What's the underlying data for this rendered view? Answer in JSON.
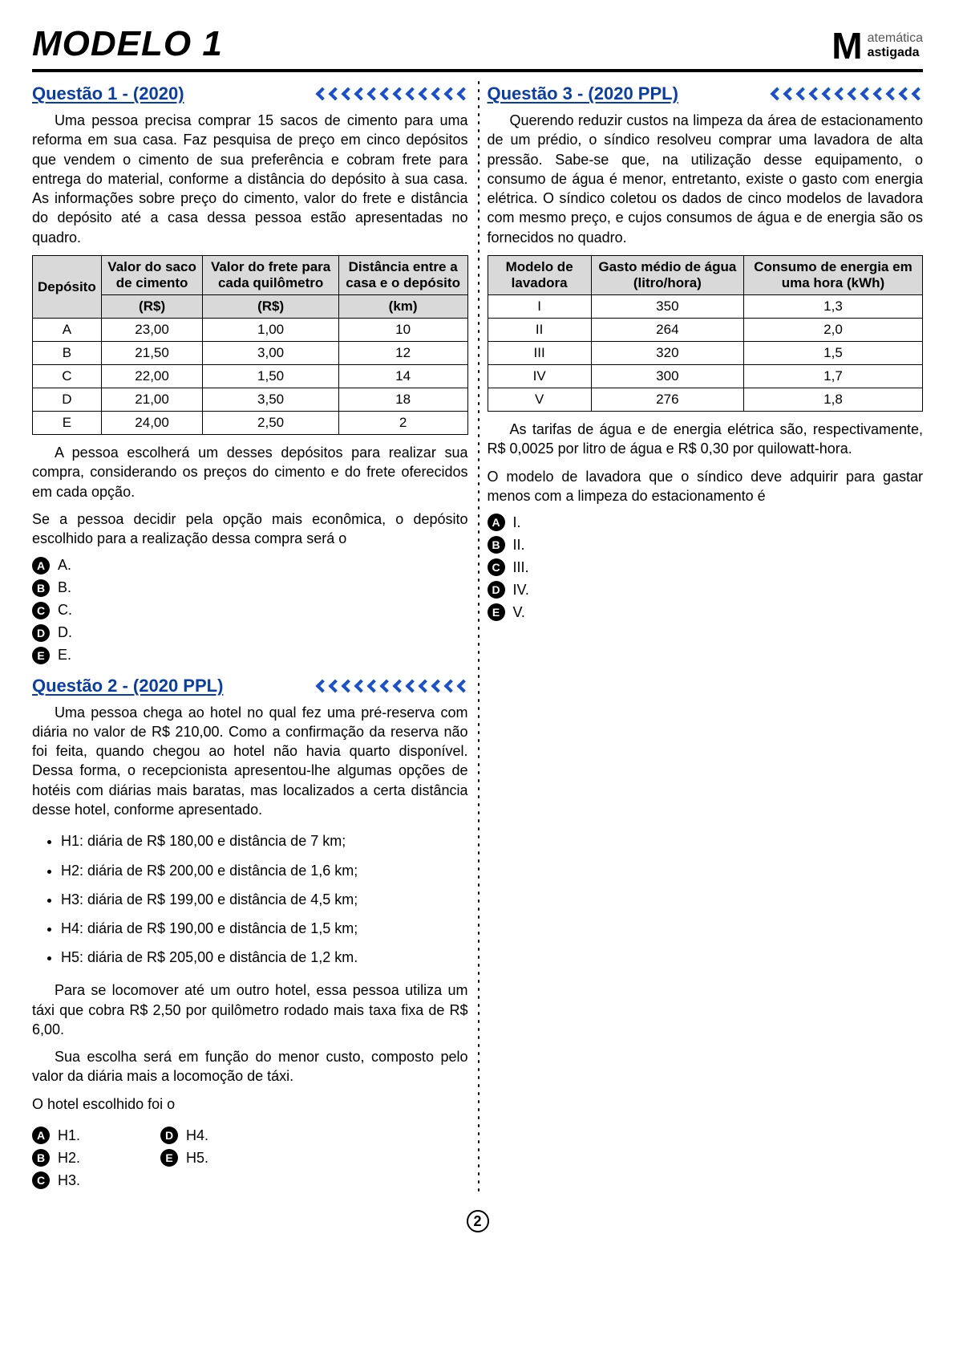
{
  "header": {
    "title": "MODELO 1",
    "logo_letter": "M",
    "logo_line1": "atemática",
    "logo_line2": "astigada"
  },
  "page_number": "2",
  "chevron_count": 12,
  "chevron_color": "#1a4fcf",
  "q1": {
    "title": "Questão 1 - (2020)",
    "para1": "Uma pessoa precisa comprar 15 sacos de cimento para uma reforma em sua casa. Faz pesquisa de preço em cinco depósitos que vendem o cimento de sua preferência e cobram frete para entrega do material, conforme a distância do depósito à sua casa. As informações sobre preço do cimento, valor do frete e distância do depósito até a casa dessa pessoa estão apresentadas no quadro.",
    "table": {
      "head_row1": [
        "Depósito",
        "Valor do saco de cimento",
        "Valor do frete para cada quilômetro",
        "Distância entre a casa e o depósito"
      ],
      "head_row2": [
        "(R$)",
        "(R$)",
        "(km)"
      ],
      "rows": [
        [
          "A",
          "23,00",
          "1,00",
          "10"
        ],
        [
          "B",
          "21,50",
          "3,00",
          "12"
        ],
        [
          "C",
          "22,00",
          "1,50",
          "14"
        ],
        [
          "D",
          "21,00",
          "3,50",
          "18"
        ],
        [
          "E",
          "24,00",
          "2,50",
          "2"
        ]
      ]
    },
    "para2": "A pessoa escolherá um desses depósitos para realizar sua compra, considerando os preços do cimento e do frete oferecidos em cada opção.",
    "para3": "Se a pessoa decidir pela opção mais econômica, o depósito escolhido para a realização dessa compra será o",
    "options": [
      "A.",
      "B.",
      "C.",
      "D.",
      "E."
    ]
  },
  "q2": {
    "title": "Questão 2 - (2020 PPL)",
    "para1": "Uma pessoa chega ao hotel no qual fez uma pré-reserva com diária no valor de R$ 210,00. Como a confirmação da reserva não foi feita, quando chegou ao hotel não havia quarto disponível. Dessa forma, o recepcionista apresentou-lhe algumas opções de hotéis com diárias mais baratas, mas localizados a certa distância desse hotel, conforme apresentado.",
    "bullets": [
      "H1: diária de R$ 180,00 e distância de 7 km;",
      "H2: diária de R$ 200,00 e distância de 1,6 km;",
      "H3: diária de R$ 199,00 e distância de 4,5 km;",
      "H4: diária de R$ 190,00 e distância de 1,5 km;",
      "H5: diária de R$ 205,00 e distância de 1,2 km."
    ],
    "para2": "Para se locomover até um outro hotel, essa pessoa utiliza um táxi que cobra R$ 2,50 por quilômetro rodado mais taxa fixa de R$ 6,00.",
    "para3": "Sua escolha será em função do menor custo, composto pelo valor da diária mais a locomoção de táxi.",
    "para4": "O hotel escolhido foi o",
    "options_left": [
      "H1.",
      "H2.",
      "H3."
    ],
    "options_right": [
      "H4.",
      "H5."
    ]
  },
  "q3": {
    "title": "Questão 3 - (2020 PPL)",
    "para1": "Querendo reduzir custos na limpeza da área de estacionamento de um prédio, o síndico resolveu comprar uma lavadora de alta pressão. Sabe-se que, na utilização desse equipamento, o consumo de água é menor, entretanto, existe o gasto com energia elétrica. O síndico coletou os dados de cinco modelos de lavadora com mesmo preço, e cujos consumos de água e de energia são os fornecidos no quadro.",
    "table": {
      "head": [
        "Modelo de lavadora",
        "Gasto médio de água (litro/hora)",
        "Consumo de energia em uma hora (kWh)"
      ],
      "rows": [
        [
          "I",
          "350",
          "1,3"
        ],
        [
          "II",
          "264",
          "2,0"
        ],
        [
          "III",
          "320",
          "1,5"
        ],
        [
          "IV",
          "300",
          "1,7"
        ],
        [
          "V",
          "276",
          "1,8"
        ]
      ]
    },
    "para2": "As tarifas de água e de energia elétrica são, respectivamente, R$ 0,0025 por litro de água e R$ 0,30 por quilowatt-hora.",
    "para3": "O modelo de lavadora que o síndico deve adquirir para gastar menos com a limpeza do estacionamento é",
    "options": [
      "I.",
      "II.",
      "III.",
      "IV.",
      "V."
    ]
  },
  "option_letters": [
    "A",
    "B",
    "C",
    "D",
    "E"
  ]
}
